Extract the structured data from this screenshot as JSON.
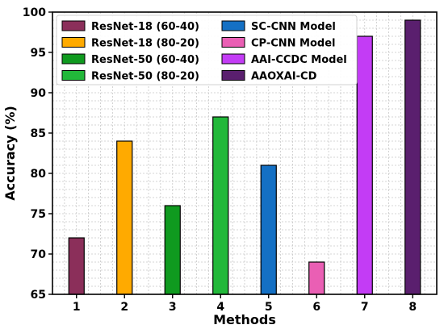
{
  "chart_data": {
    "type": "bar",
    "xlabel": "Methods",
    "ylabel": "Accuracy (%)",
    "ylim": [
      65,
      100
    ],
    "yticks": [
      65,
      70,
      75,
      80,
      85,
      90,
      95,
      100
    ],
    "xlim": [
      0.5,
      8.5
    ],
    "categories": [
      "1",
      "2",
      "3",
      "4",
      "5",
      "6",
      "7",
      "8"
    ],
    "grid": true,
    "legend_position": "top-left",
    "legend_columns": 2,
    "series": [
      {
        "name": "ResNet-18 (60-40)",
        "x": 1,
        "value": 72,
        "color": "#8b2f5a"
      },
      {
        "name": "ResNet-18 (80-20)",
        "x": 2,
        "value": 84,
        "color": "#ffaa00"
      },
      {
        "name": "ResNet-50 (60-40)",
        "x": 3,
        "value": 76,
        "color": "#0f9a1f"
      },
      {
        "name": "ResNet-50 (80-20)",
        "x": 4,
        "value": 87,
        "color": "#22b83a"
      },
      {
        "name": "SC-CNN Model",
        "x": 5,
        "value": 81,
        "color": "#1470c4"
      },
      {
        "name": "CP-CNN Model",
        "x": 6,
        "value": 69,
        "color": "#ea5fb4"
      },
      {
        "name": "AAI-CCDC Model",
        "x": 7,
        "value": 97,
        "color": "#c33cf5"
      },
      {
        "name": "AAOXAI-CD",
        "x": 8,
        "value": 99,
        "color": "#5a1f6e"
      }
    ]
  }
}
